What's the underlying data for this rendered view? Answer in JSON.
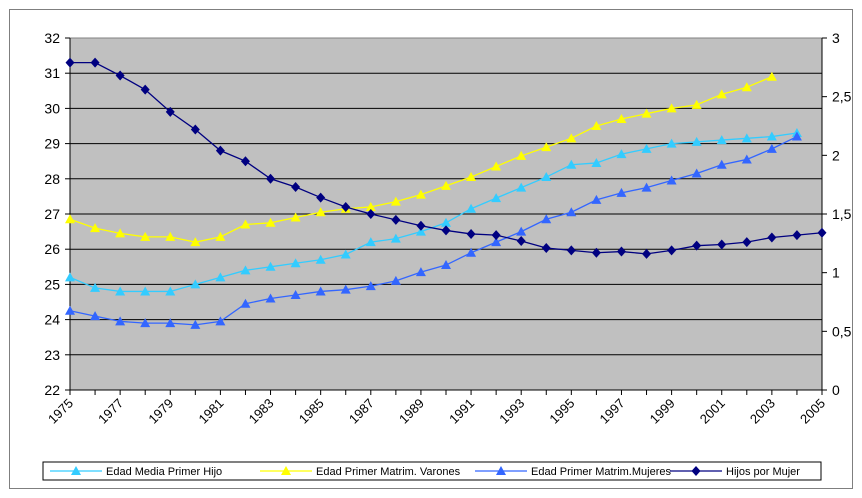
{
  "chart_data": {
    "type": "line",
    "x": [
      1975,
      1976,
      1977,
      1978,
      1979,
      1980,
      1981,
      1982,
      1983,
      1984,
      1985,
      1986,
      1987,
      1988,
      1989,
      1990,
      1991,
      1992,
      1993,
      1994,
      1995,
      1996,
      1997,
      1998,
      1999,
      2000,
      2001,
      2002,
      2003,
      2004,
      2005
    ],
    "x_tick_labels": [
      "1975",
      "1977",
      "1979",
      "1981",
      "1983",
      "1985",
      "1987",
      "1989",
      "1991",
      "1993",
      "1995",
      "1997",
      "1999",
      "2001",
      "2003",
      "2005"
    ],
    "y_left": {
      "min": 22,
      "max": 32,
      "step": 1,
      "tick_labels": [
        "22",
        "23",
        "24",
        "25",
        "26",
        "27",
        "28",
        "29",
        "30",
        "31",
        "32"
      ]
    },
    "y_right": {
      "min": 0,
      "max": 3,
      "step": 0.5,
      "tick_labels": [
        "0",
        "0,5",
        "1",
        "1,5",
        "2",
        "2,5",
        "3"
      ]
    },
    "grid": "horizontal",
    "plot_background": "#c0c0c0",
    "legend_position": "bottom",
    "series": [
      {
        "name": "Edad Media Primer Hijo",
        "axis": "left",
        "marker": "triangle",
        "color": "#33ccff",
        "values": [
          25.2,
          24.9,
          24.8,
          24.8,
          24.8,
          25.0,
          25.2,
          25.4,
          25.5,
          25.6,
          25.7,
          25.85,
          26.2,
          26.3,
          26.5,
          26.75,
          27.15,
          27.45,
          27.75,
          28.05,
          28.4,
          28.45,
          28.7,
          28.85,
          29.0,
          29.05,
          29.1,
          29.15,
          29.2,
          29.3,
          null
        ]
      },
      {
        "name": "Edad Primer Matrim. Varones",
        "axis": "left",
        "marker": "triangle",
        "color": "#ffff00",
        "values": [
          26.85,
          26.6,
          26.45,
          26.35,
          26.35,
          26.2,
          26.35,
          26.7,
          26.75,
          26.9,
          27.05,
          27.15,
          27.2,
          27.35,
          27.55,
          27.8,
          28.05,
          28.35,
          28.65,
          28.9,
          29.15,
          29.5,
          29.7,
          29.85,
          30.0,
          30.1,
          30.4,
          30.6,
          30.9,
          null,
          null
        ]
      },
      {
        "name": "Edad Primer Matrim.Mujeres",
        "axis": "left",
        "marker": "triangle",
        "color": "#3366ff",
        "values": [
          24.25,
          24.1,
          23.95,
          23.9,
          23.9,
          23.85,
          23.95,
          24.45,
          24.6,
          24.7,
          24.8,
          24.85,
          24.95,
          25.1,
          25.35,
          25.55,
          25.9,
          26.2,
          26.5,
          26.85,
          27.05,
          27.4,
          27.6,
          27.75,
          27.95,
          28.15,
          28.4,
          28.55,
          28.85,
          29.2,
          null
        ]
      },
      {
        "name": "Hijos por Mujer",
        "axis": "right",
        "marker": "diamond",
        "color": "#000080",
        "values": [
          2.79,
          2.79,
          2.68,
          2.56,
          2.37,
          2.22,
          2.04,
          1.95,
          1.8,
          1.73,
          1.64,
          1.56,
          1.5,
          1.45,
          1.4,
          1.36,
          1.33,
          1.32,
          1.27,
          1.21,
          1.19,
          1.17,
          1.18,
          1.16,
          1.19,
          1.23,
          1.24,
          1.26,
          1.3,
          1.32,
          1.34
        ]
      }
    ]
  }
}
